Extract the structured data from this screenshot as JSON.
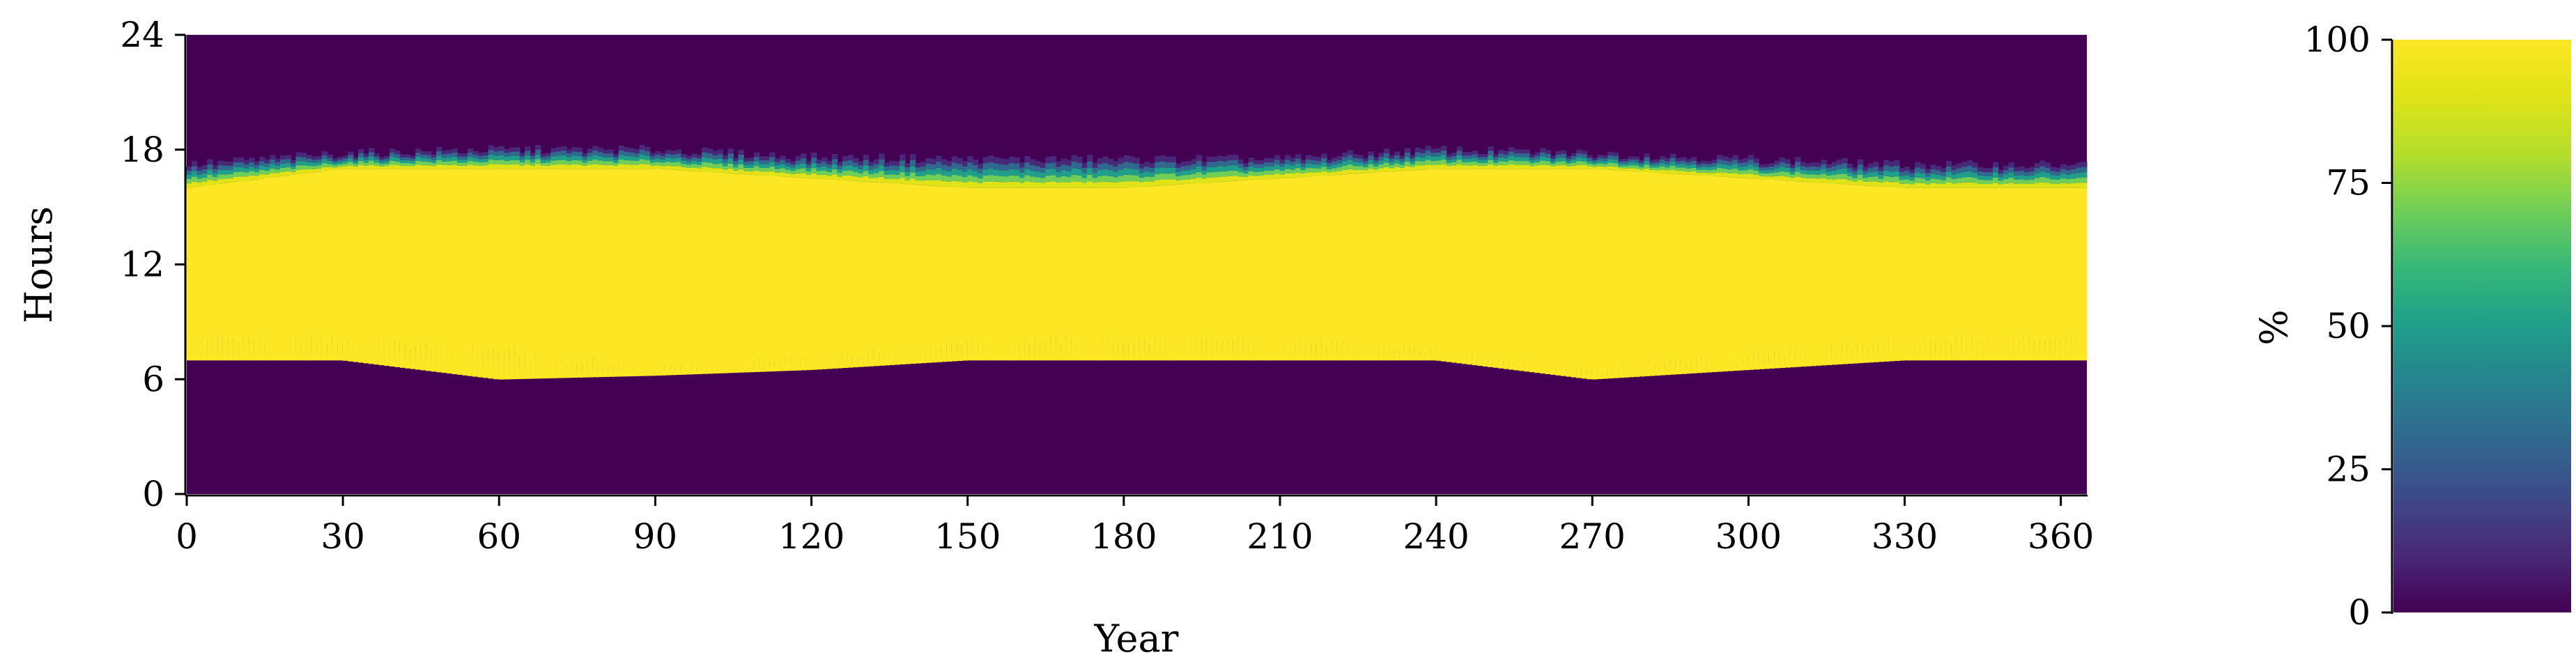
{
  "chart_data": {
    "type": "heatmap",
    "xlabel": "Year",
    "ylabel": "Hours",
    "xlim": [
      0,
      365
    ],
    "ylim": [
      0,
      24
    ],
    "xticks": [
      "0",
      "30",
      "60",
      "90",
      "120",
      "150",
      "180",
      "210",
      "240",
      "270",
      "300",
      "330",
      "360"
    ],
    "yticks": [
      "0",
      "6",
      "12",
      "18",
      "24"
    ],
    "colorbar": {
      "label": "%",
      "range": [
        0,
        100
      ],
      "ticks": [
        "0",
        "25",
        "50",
        "75",
        "100"
      ],
      "colormap": "viridis"
    },
    "bands": {
      "x": [
        0,
        30,
        60,
        90,
        120,
        150,
        180,
        210,
        240,
        270,
        300,
        330,
        365
      ],
      "start_hour_100": [
        7.0,
        7.0,
        6.0,
        6.2,
        6.5,
        7.0,
        7.0,
        7.0,
        7.0,
        6.0,
        6.5,
        7.0,
        7.0
      ],
      "start_hour_0": [
        8.2,
        8.0,
        7.5,
        6.5,
        7.0,
        8.0,
        8.0,
        8.0,
        7.5,
        6.5,
        7.2,
        8.0,
        8.2
      ],
      "end_hour_100": [
        16.0,
        17.0,
        17.0,
        17.0,
        16.5,
        16.0,
        16.0,
        16.5,
        17.0,
        17.0,
        16.5,
        16.0,
        16.0
      ],
      "end_hour_0": [
        17.2,
        17.8,
        18.0,
        18.0,
        17.6,
        17.5,
        17.5,
        17.5,
        18.0,
        17.8,
        17.5,
        17.2,
        17.2
      ]
    }
  }
}
